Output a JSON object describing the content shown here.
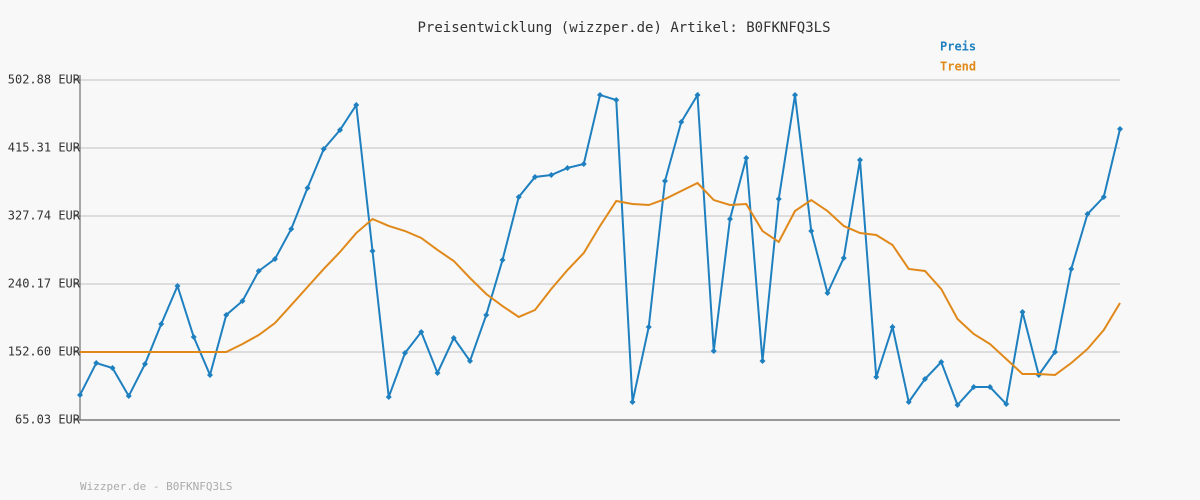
{
  "chart_data": {
    "type": "line",
    "title": "Preisentwicklung (wizzper.de) Artikel: B0FKNFQ3LS",
    "footer": "Wizzper.de - B0FKNFQ3LS",
    "categories": [
      null,
      null,
      null,
      null,
      null,
      null,
      null,
      null,
      null,
      null,
      null,
      null,
      null,
      null,
      null,
      null,
      null,
      null,
      null,
      null,
      null,
      null,
      null,
      null,
      null,
      null,
      null,
      null,
      null,
      null,
      null,
      null,
      null,
      null,
      null,
      null,
      null,
      null,
      null,
      null,
      null,
      null,
      null,
      null,
      null,
      null,
      null,
      null,
      null,
      null,
      null,
      null,
      null,
      null,
      null,
      null,
      null,
      null,
      null,
      null,
      null,
      null,
      null,
      null,
      null
    ],
    "ylim": [
      65.03,
      502.88
    ],
    "yticks": [
      {
        "value": 65.03,
        "label": "65.03 EUR"
      },
      {
        "value": 152.6,
        "label": "152.60 EUR"
      },
      {
        "value": 240.17,
        "label": "240.17 EUR"
      },
      {
        "value": 327.74,
        "label": "327.74 EUR"
      },
      {
        "value": 415.31,
        "label": "415.31 EUR"
      },
      {
        "value": 502.88,
        "label": "502.88 EUR"
      }
    ],
    "grid": true,
    "legend": "top-right",
    "series": [
      {
        "name": "Preis",
        "color": "#1f80c0",
        "markers": true,
        "values": [
          97.2,
          138.4,
          132.0,
          95.9,
          137.1,
          188.7,
          237.6,
          171.9,
          123.0,
          200.3,
          218.3,
          256.9,
          272.4,
          311.0,
          363.8,
          414.0,
          438.5,
          470.7,
          282.7,
          94.7,
          151.3,
          178.4,
          125.6,
          170.6,
          141.0,
          200.3,
          271.1,
          352.2,
          378.0,
          380.5,
          389.6,
          394.7,
          483.6,
          477.1,
          88.2,
          184.8,
          372.8,
          448.8,
          483.6,
          153.9,
          323.9,
          402.4,
          141.0,
          349.6,
          483.6,
          308.4,
          228.6,
          273.7,
          399.9,
          120.4,
          184.8,
          88.2,
          117.8,
          139.7,
          84.3,
          107.5,
          107.5,
          85.6,
          204.1,
          123.0,
          152.6,
          259.5,
          330.3,
          352.2,
          439.8
        ]
      },
      {
        "name": "Trend",
        "color": "#e0891a",
        "markers": false,
        "values": [
          152.6,
          152.6,
          152.6,
          152.6,
          152.6,
          152.6,
          152.6,
          152.6,
          152.6,
          152.6,
          162.9,
          174.5,
          189.9,
          213.1,
          236.3,
          259.5,
          281.4,
          305.8,
          323.9,
          314.9,
          308.4,
          299.4,
          284.0,
          269.8,
          247.9,
          227.3,
          211.8,
          197.7,
          206.7,
          233.7,
          258.2,
          280.1,
          314.9,
          347.1,
          343.2,
          341.9,
          349.6,
          359.9,
          370.2,
          348.3,
          341.9,
          343.2,
          308.4,
          294.3,
          334.2,
          348.3,
          334.2,
          314.9,
          305.8,
          303.3,
          290.4,
          259.5,
          256.9,
          233.7,
          195.1,
          175.8,
          162.9,
          143.6,
          124.3,
          124.3,
          123.0,
          138.4,
          156.5,
          180.9,
          215.7
        ]
      }
    ]
  }
}
